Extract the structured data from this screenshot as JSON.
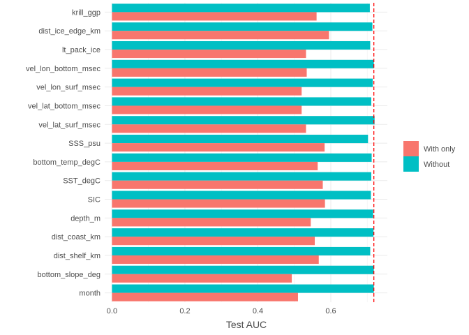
{
  "chart_data": {
    "type": "bar",
    "orientation": "horizontal",
    "categories": [
      "krill_ggp",
      "dist_ice_edge_km",
      "lt_pack_ice",
      "vel_lon_bottom_msec",
      "vel_lon_surf_msec",
      "vel_lat_bottom_msec",
      "vel_lat_surf_msec",
      "SSS_psu",
      "bottom_temp_degC",
      "SST_degC",
      "SIC",
      "depth_m",
      "dist_coast_km",
      "dist_shelf_km",
      "bottom_slope_deg",
      "month"
    ],
    "series": [
      {
        "name": "Without",
        "color": "#00BFC4",
        "values": [
          0.707,
          0.714,
          0.708,
          0.718,
          0.715,
          0.711,
          0.72,
          0.702,
          0.712,
          0.711,
          0.71,
          0.716,
          0.717,
          0.708,
          0.718,
          0.718
        ]
      },
      {
        "name": "With only",
        "color": "#F8766D",
        "values": [
          0.561,
          0.595,
          0.532,
          0.534,
          0.52,
          0.52,
          0.532,
          0.583,
          0.564,
          0.578,
          0.584,
          0.545,
          0.556,
          0.567,
          0.493,
          0.51
        ]
      }
    ],
    "reference_line": {
      "value": 0.718,
      "color": "#FF0000",
      "style": "dashed"
    },
    "xlabel": "Test AUC",
    "ylabel": "",
    "xlim": [
      -0.02,
      0.755
    ],
    "xticks": [
      "0.0",
      "0.2",
      "0.4",
      "0.6"
    ],
    "tick_values": [
      0.0,
      0.2,
      0.4,
      0.6
    ],
    "grid": true,
    "legend": {
      "placement": "right",
      "entries": [
        "With only",
        "Without"
      ]
    }
  }
}
